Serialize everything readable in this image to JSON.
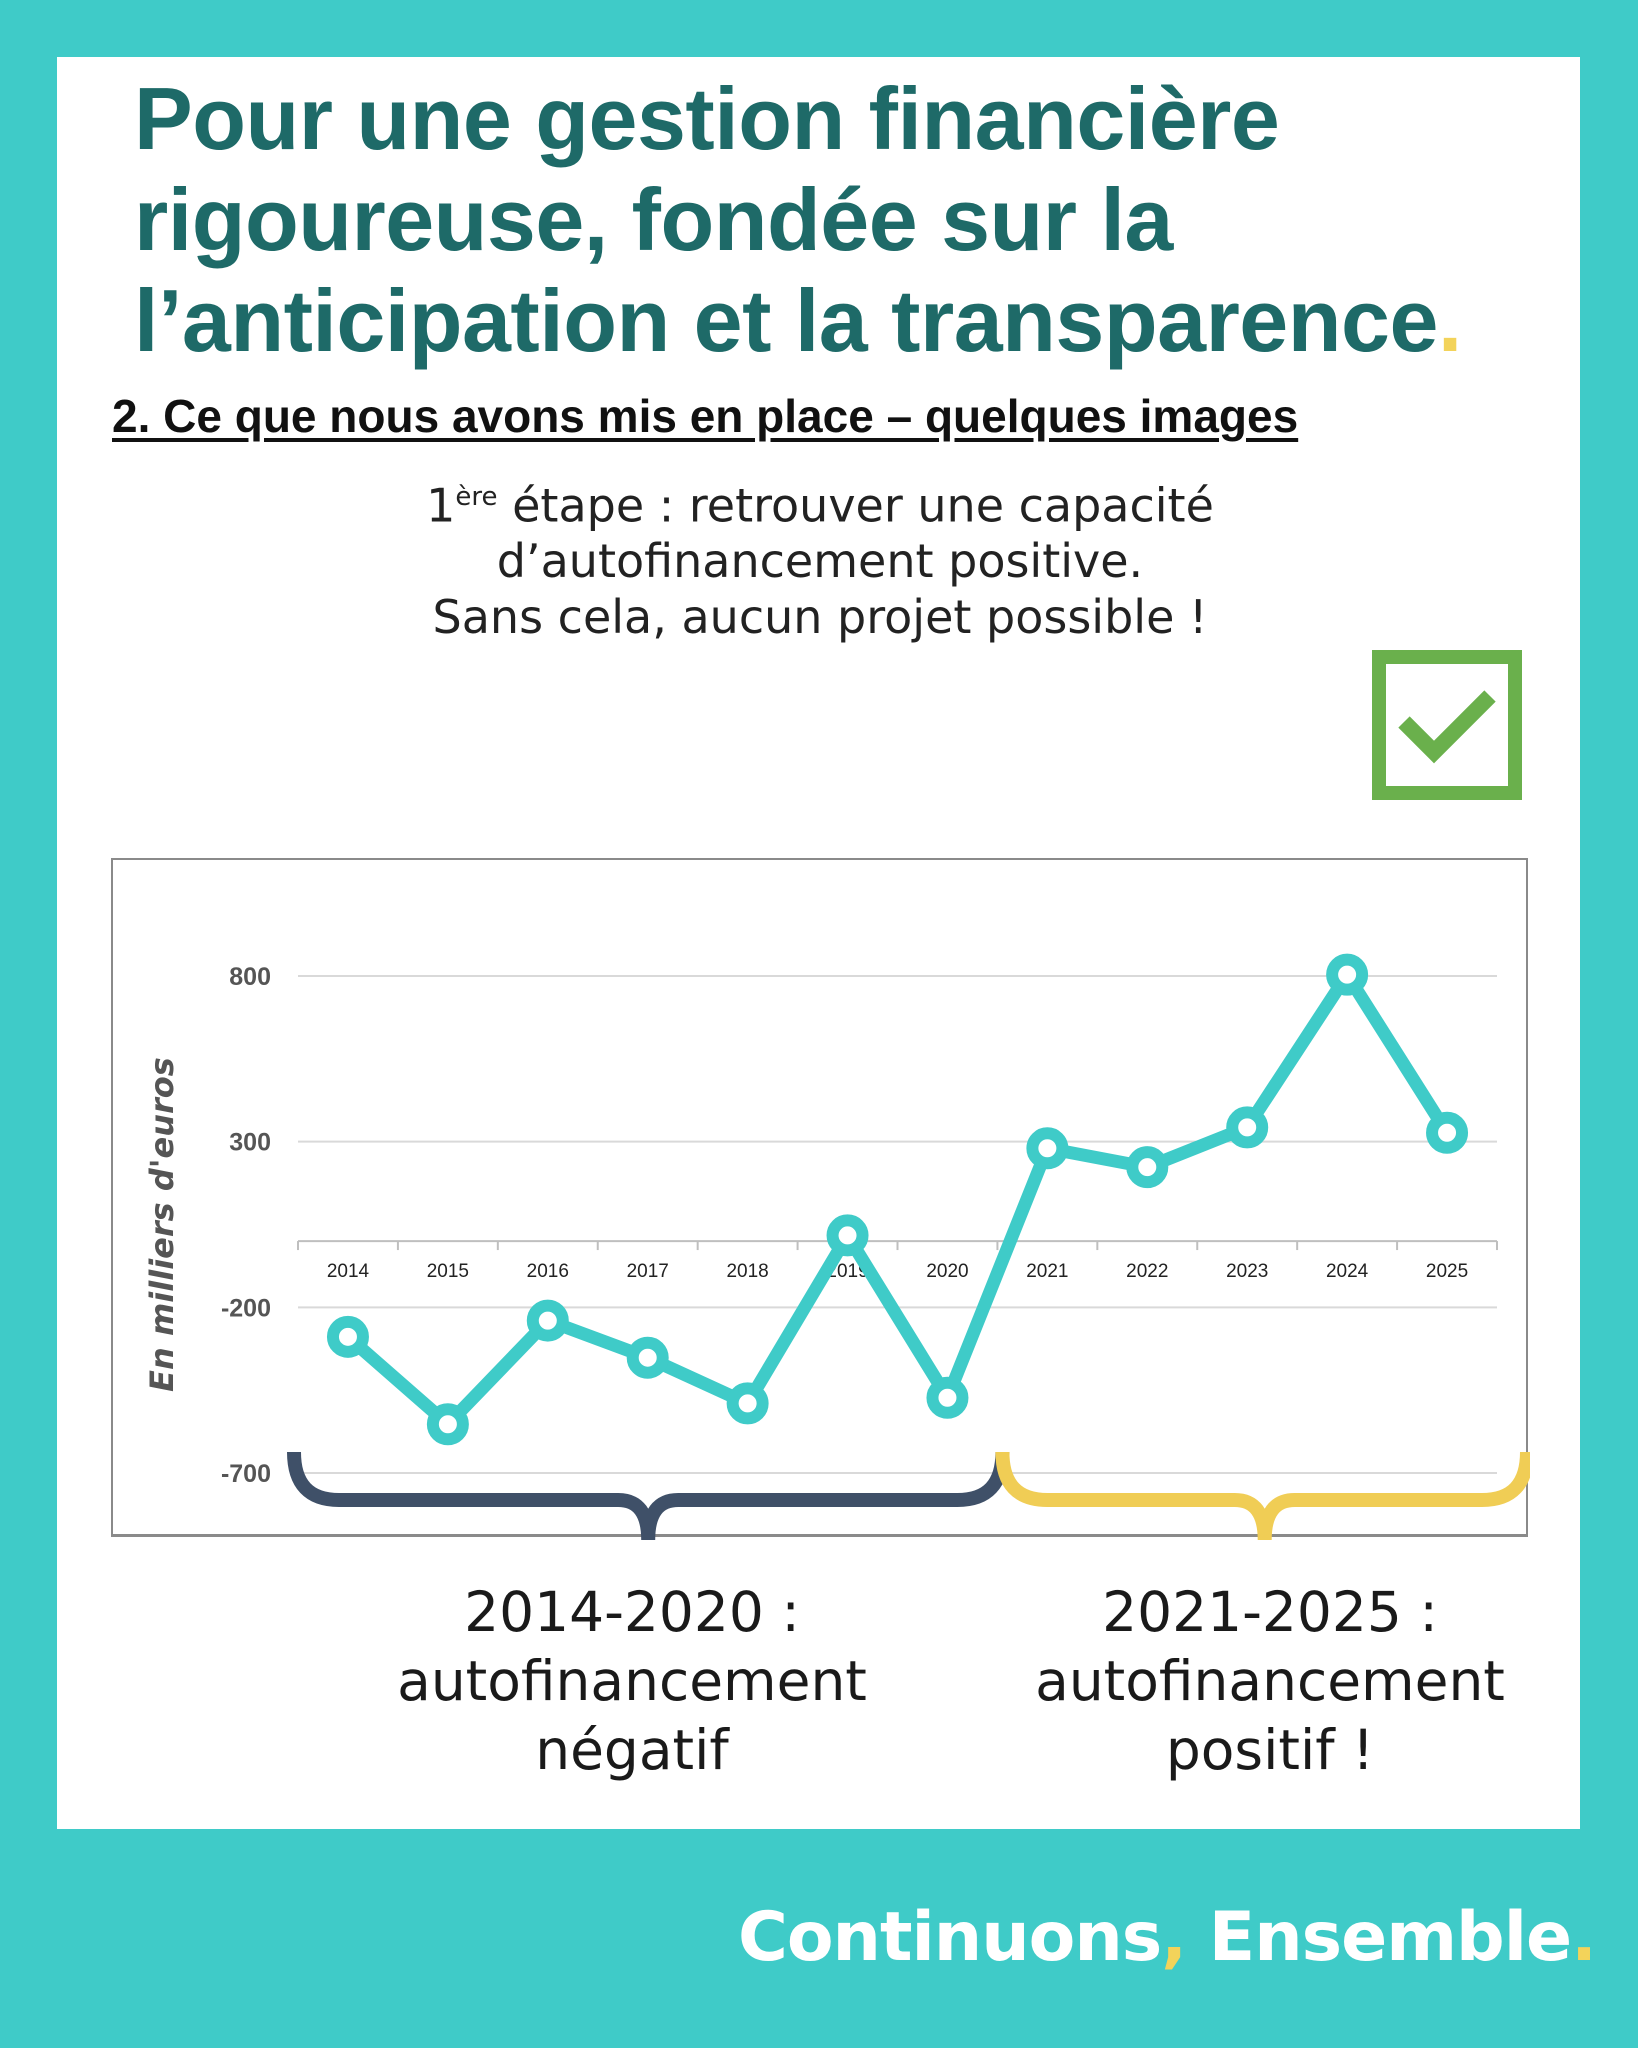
{
  "title": {
    "text": "Pour une gestion financière rigoureuse, fondée sur la l’anticipation et la transparence",
    "dot": "."
  },
  "subtitle": "2. Ce que nous avons mis en place – quelques images",
  "intro": {
    "line1_prefix": "1",
    "line1_sup": "ère",
    "line1_rest": " étape : retrouver une capacité",
    "line2": "d’autofinancement positive.",
    "line3": "Sans cela, aucun projet possible !"
  },
  "check_icon_color": "#6ab04c",
  "chart_data": {
    "type": "line",
    "title": "",
    "xlabel": "",
    "ylabel": "En milliers d'euros",
    "categories": [
      "2014",
      "2015",
      "2016",
      "2017",
      "2018",
      "2019",
      "2020",
      "2021",
      "2022",
      "2023",
      "2024",
      "2025"
    ],
    "series": [
      {
        "values": [
          -289,
          -553,
          -240,
          -352,
          -490,
          17,
          -473,
          280,
          223,
          343,
          804,
          327
        ],
        "color": "#3fcbc8"
      }
    ],
    "yticks": [
      800,
      300,
      -200,
      -700
    ],
    "ytick_labels": [
      "800",
      "300",
      "-200",
      "-700"
    ],
    "ylim": [
      -780,
      900
    ],
    "grid": true,
    "brackets": [
      {
        "from": "2014",
        "to": "2020",
        "color": "#3f5068"
      },
      {
        "from": "2021",
        "to": "2025",
        "color": "#f0cd55"
      }
    ]
  },
  "periods": [
    {
      "range": "2014-2020 :",
      "line2": "autofinancement",
      "line3": "négatif"
    },
    {
      "range": "2021-2025 :",
      "line2": "autofinancement",
      "line3": "positif !"
    }
  ],
  "footer": {
    "word1": "Continuons",
    "comma": ",",
    "word2": " Ensemble",
    "dot": "."
  },
  "colors": {
    "background": "#3fcbc8",
    "title": "#1e6a68",
    "accent_yellow": "#f3d35a"
  }
}
